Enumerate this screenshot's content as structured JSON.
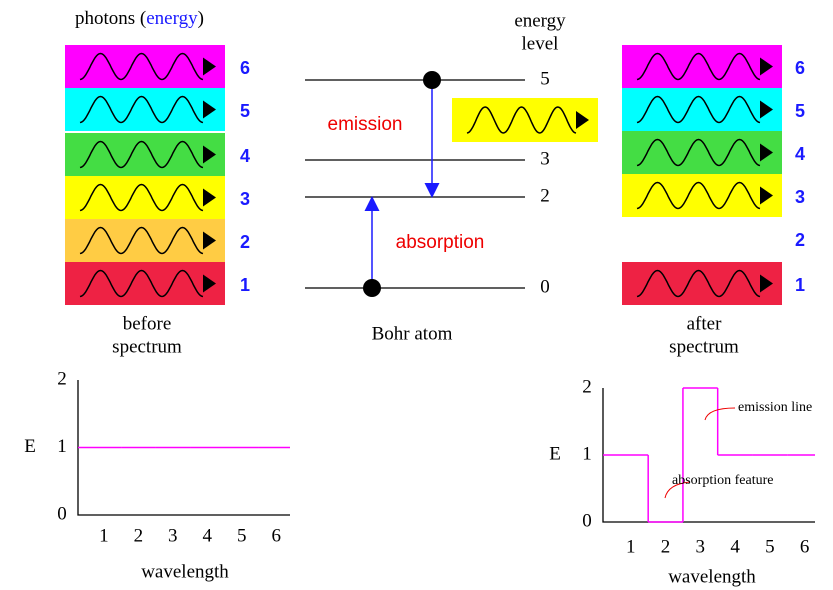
{
  "title": {
    "prefix": "photons (",
    "highlight": "energy",
    "suffix": ")"
  },
  "before": {
    "photons": [
      {
        "energy": 6,
        "color": "#ff00ff"
      },
      {
        "energy": 5,
        "color": "#00ffff"
      },
      {
        "energy": 4,
        "color": "#44dd44"
      },
      {
        "energy": 3,
        "color": "#ffff00"
      },
      {
        "energy": 2,
        "color": "#ffcc44"
      },
      {
        "energy": 1,
        "color": "#ee2244"
      }
    ],
    "caption": [
      "before",
      "spectrum"
    ]
  },
  "after": {
    "photons": [
      {
        "energy": 6,
        "color": "#ff00ff"
      },
      {
        "energy": 5,
        "color": "#00ffff"
      },
      {
        "energy": 4,
        "color": "#44dd44"
      },
      {
        "energy": 3,
        "color": "#ffff00"
      },
      {
        "energy": 2,
        "color": null
      },
      {
        "energy": 1,
        "color": "#ee2244"
      }
    ],
    "caption": [
      "after",
      "spectrum"
    ]
  },
  "atom": {
    "heading": [
      "energy",
      "level"
    ],
    "levels": [
      5,
      3,
      2,
      0
    ],
    "emission": "emission",
    "absorption": "absorption",
    "emitted_color": "#ffff00",
    "label": "Bohr atom"
  },
  "chart_data": [
    {
      "type": "step",
      "ylabel": "E",
      "xlabel": "wavelength",
      "x": [
        1,
        2,
        3,
        4,
        5,
        6
      ],
      "values": [
        1,
        1,
        1,
        1,
        1,
        1
      ],
      "color": "#ff00ff",
      "xlim": [
        0.25,
        6.4
      ],
      "ylim": [
        0,
        2
      ],
      "yticks": [
        0,
        1,
        2
      ]
    },
    {
      "type": "step",
      "ylabel": "E",
      "xlabel": "wavelength",
      "x": [
        1,
        2,
        3,
        4,
        5,
        6
      ],
      "values": [
        1,
        0,
        2,
        1,
        1,
        1
      ],
      "color": "#ff00ff",
      "xlim": [
        0.2,
        6.3
      ],
      "ylim": [
        0,
        2
      ],
      "yticks": [
        0,
        1,
        2
      ],
      "annotations": [
        "emission line",
        "absorption feature"
      ]
    }
  ]
}
